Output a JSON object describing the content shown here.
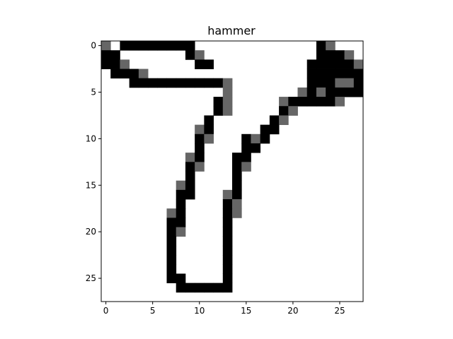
{
  "chart_data": {
    "type": "heatmap",
    "title": "hammer",
    "xlabel": "",
    "ylabel": "",
    "xlim": [
      -0.5,
      27.5
    ],
    "ylim": [
      27.5,
      -0.5
    ],
    "x_ticks": [
      0,
      5,
      10,
      15,
      20,
      25
    ],
    "y_ticks": [
      0,
      5,
      10,
      15,
      20,
      25
    ],
    "grid": false,
    "colormap": "gray_r",
    "value_range": [
      0,
      1
    ],
    "colors": {
      "ink": "#000000",
      "mid": "#666666",
      "background": "#ffffff"
    },
    "rows": [
      "M.XXXXXXXX.............XM...",
      "XX.......XM............XXXM.",
      "XXM.......XX..........XXXXXM",
      ".XXXM.................XXXXXX",
      "...XXXXXXXXXXM........XXXMMX",
      ".............M.......MXMXXXX",
      "............XM.....MXXXXXM..",
      "............XM.....XM.......",
      "...........X......XM........",
      "..........MX.....XX.........",
      "..........XM...XMX..........",
      "..........X....XX...........",
      ".........MX...XX............",
      ".........XM...XM............",
      ".........X....X.............",
      "........MX....X.............",
      "........XX...MX.............",
      "........X....XM.............",
      ".......MX....XM.............",
      ".......XX....X..............",
      ".......XM....X..............",
      ".......X.....X..............",
      ".......X.....X..............",
      ".......X.....X..............",
      ".......X.....X..............",
      ".......XX....X..............",
      "........XXXXXX..............",
      "............................"
    ],
    "legend": {
      "X": 1.0,
      "M": 0.6,
      ".": 0.0
    }
  }
}
